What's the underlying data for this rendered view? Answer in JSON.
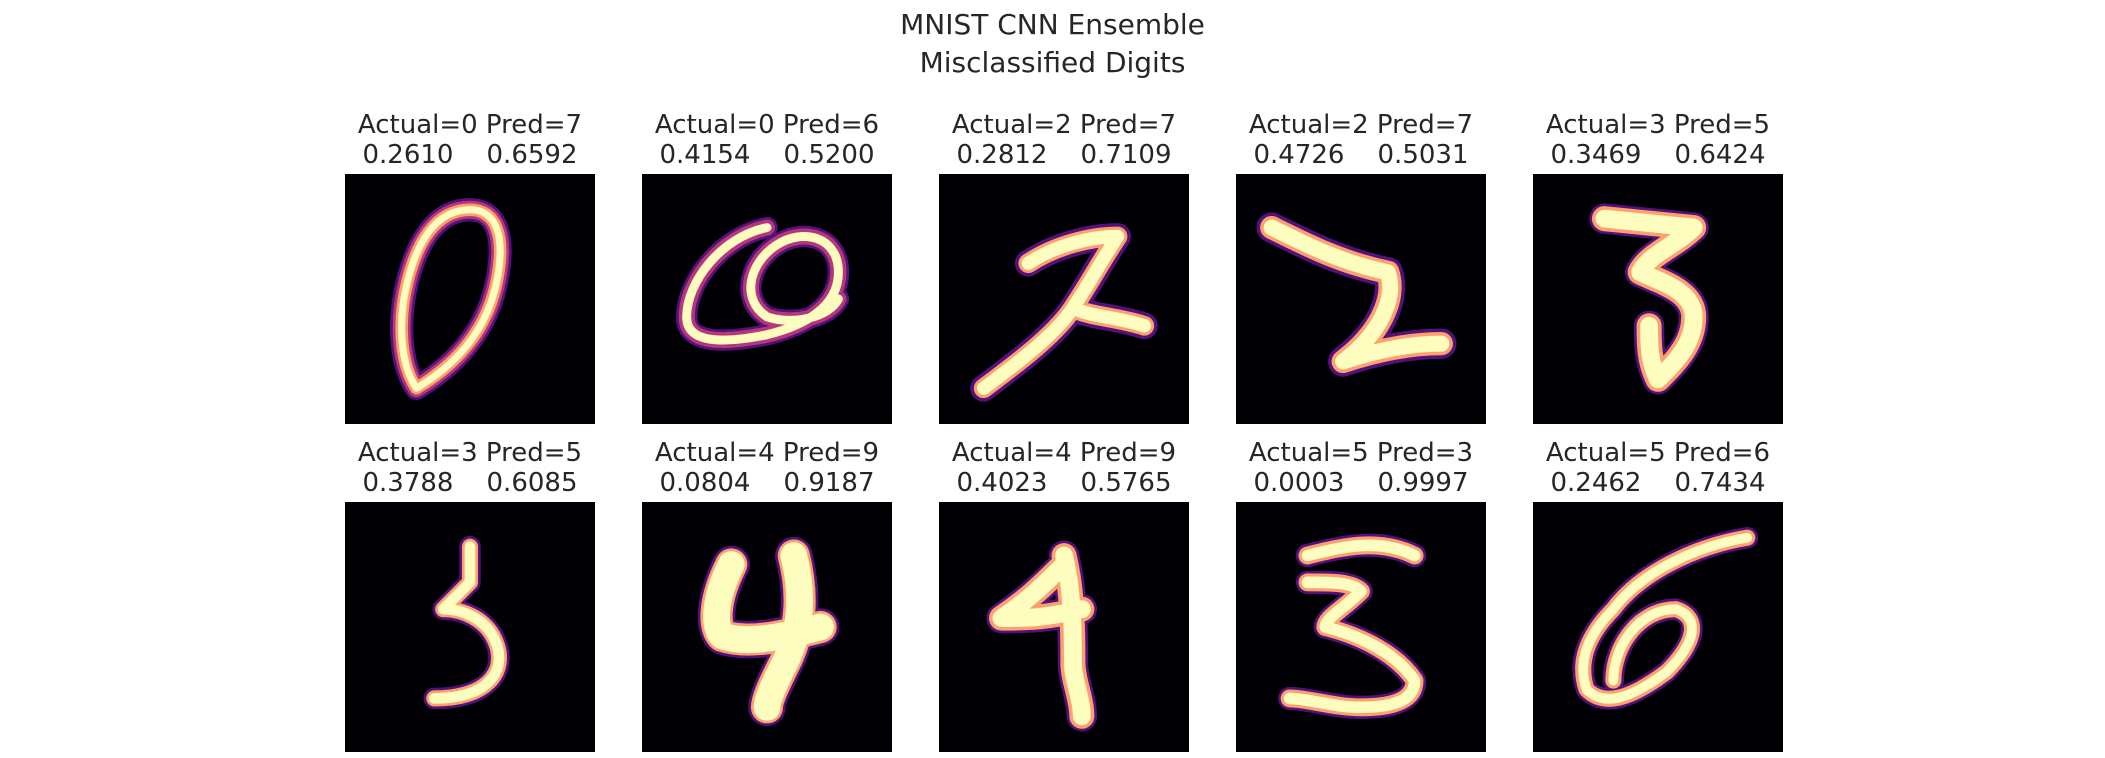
{
  "title": {
    "line1": "MNIST CNN Ensemble",
    "line2": "Misclassified Digits"
  },
  "colors": {
    "background": "#000004",
    "core": "#fcfdbf",
    "mid": "#fe9f6d",
    "edge": "#b63679",
    "outer": "#51127c"
  },
  "samples": [
    {
      "label": "Actual=0 Pred=7",
      "probs": "0.2610    0.6592",
      "digit": "0"
    },
    {
      "label": "Actual=0 Pred=6",
      "probs": "0.4154    0.5200",
      "digit": "0"
    },
    {
      "label": "Actual=2 Pred=7",
      "probs": "0.2812    0.7109",
      "digit": "2"
    },
    {
      "label": "Actual=2 Pred=7",
      "probs": "0.4726    0.5031",
      "digit": "2"
    },
    {
      "label": "Actual=3 Pred=5",
      "probs": "0.3469    0.6424",
      "digit": "3"
    },
    {
      "label": "Actual=3 Pred=5",
      "probs": "0.3788    0.6085",
      "digit": "3"
    },
    {
      "label": "Actual=4 Pred=9",
      "probs": "0.0804    0.9187",
      "digit": "4"
    },
    {
      "label": "Actual=4 Pred=9",
      "probs": "0.4023    0.5765",
      "digit": "4"
    },
    {
      "label": "Actual=5 Pred=3",
      "probs": "0.0003    0.9997",
      "digit": "5"
    },
    {
      "label": "Actual=5 Pred=6",
      "probs": "0.2462    0.7434",
      "digit": "5"
    }
  ]
}
